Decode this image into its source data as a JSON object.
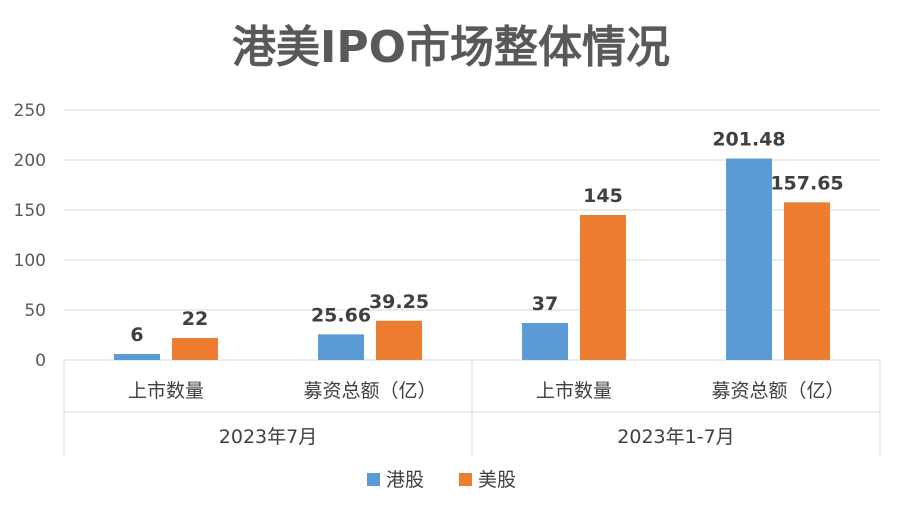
{
  "chart_data": {
    "type": "bar",
    "title": "港美IPO市场整体情况",
    "xlabel": "",
    "ylabel": "",
    "ylim": [
      0,
      250
    ],
    "yticks": [
      0,
      50,
      100,
      150,
      200,
      250
    ],
    "grid": true,
    "legend_position": "bottom",
    "groups": [
      {
        "label": "2023年7月",
        "categories": [
          "上市数量",
          "募资总额（亿）"
        ]
      },
      {
        "label": "2023年1-7月",
        "categories": [
          "上市数量",
          "募资总额（亿）"
        ]
      }
    ],
    "categories": [
      "上市数量",
      "募资总额（亿）",
      "上市数量",
      "募资总额（亿）"
    ],
    "series": [
      {
        "name": "港股",
        "color": "#5b9bd5",
        "values": [
          6,
          25.66,
          37,
          201.48
        ],
        "labels": [
          "6",
          "25.66",
          "37",
          "201.48"
        ]
      },
      {
        "name": "美股",
        "color": "#ed7d31",
        "values": [
          22,
          39.25,
          145,
          157.65
        ],
        "labels": [
          "22",
          "39.25",
          "145",
          "157.65"
        ]
      }
    ]
  }
}
